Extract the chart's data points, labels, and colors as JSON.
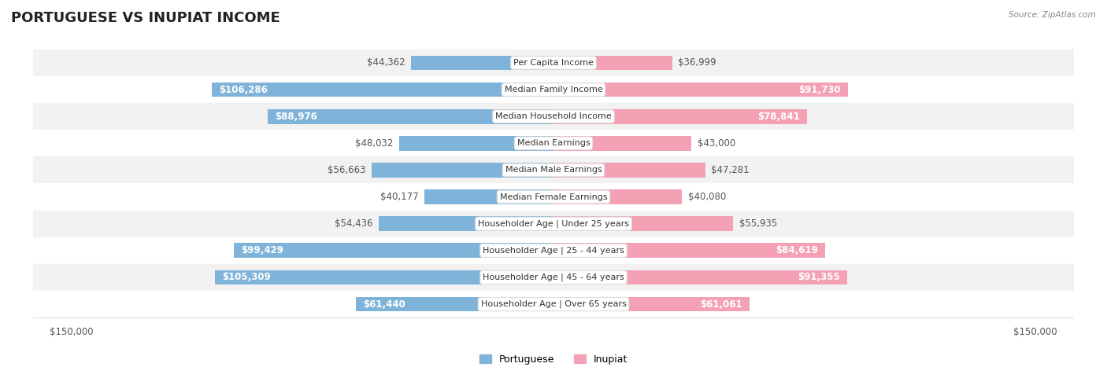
{
  "title": "PORTUGUESE VS INUPIAT INCOME",
  "source": "Source: ZipAtlas.com",
  "categories": [
    "Per Capita Income",
    "Median Family Income",
    "Median Household Income",
    "Median Earnings",
    "Median Male Earnings",
    "Median Female Earnings",
    "Householder Age | Under 25 years",
    "Householder Age | 25 - 44 years",
    "Householder Age | 45 - 64 years",
    "Householder Age | Over 65 years"
  ],
  "portuguese_values": [
    44362,
    106286,
    88976,
    48032,
    56663,
    40177,
    54436,
    99429,
    105309,
    61440
  ],
  "inupiat_values": [
    36999,
    91730,
    78841,
    43000,
    47281,
    40080,
    55935,
    84619,
    91355,
    61061
  ],
  "max_value": 150000,
  "portuguese_color": "#7fb3d9",
  "portuguese_color_dark": "#5b9bd5",
  "inupiat_color": "#f4a0b5",
  "inupiat_color_dark": "#e96b8a",
  "bar_height": 0.55,
  "background_color": "#ffffff",
  "row_bg_color": "#f2f2f2",
  "row_bg_alt": "#ffffff",
  "label_bg_color": "#ffffff",
  "title_fontsize": 13,
  "value_fontsize": 8.5,
  "label_fontsize": 8,
  "axis_label_fontsize": 8.5
}
